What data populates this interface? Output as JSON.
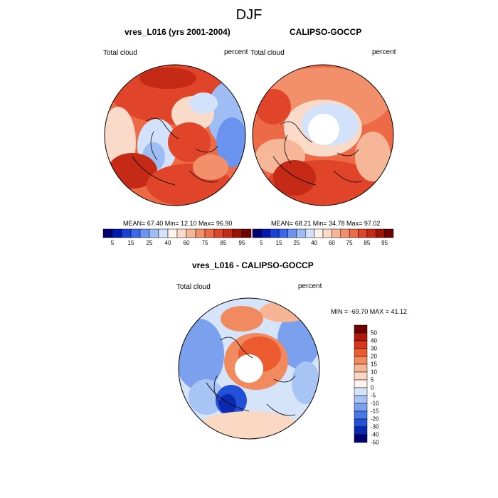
{
  "title": "DJF",
  "panels": [
    {
      "title": "vres_L016 (yrs 2001-2004)",
      "left_label": "Total cloud",
      "right_label": "percent",
      "stats": {
        "text": "MEAN=  67.40  Min=  12.10  Max=  96.90"
      }
    },
    {
      "title": "CALIPSO-GOCCP",
      "left_label": "Total cloud",
      "right_label": "percent",
      "stats": {
        "text": "MEAN=  68.21  Min=  34.78  Max=  97.02"
      }
    },
    {
      "title": "vres_L016 - CALIPSO-GOCCP",
      "left_label": "Total cloud",
      "right_label": "percent",
      "stats": {
        "text": "MIN = -69.70 MAX =  41.12"
      }
    }
  ],
  "colorbar_abs": {
    "colors": [
      "#00006e",
      "#001ab0",
      "#1a40d6",
      "#3a68ec",
      "#6a94f0",
      "#9ebdf4",
      "#d2e2fa",
      "#fdf3ec",
      "#fadac8",
      "#f6b698",
      "#f2906c",
      "#ec6a46",
      "#e0452a",
      "#c42a16",
      "#9a1408",
      "#6e0200"
    ],
    "ticks": [
      "5",
      "15",
      "25",
      "40",
      "60",
      "75",
      "85",
      "95"
    ]
  },
  "colorbar_diff": {
    "colors": [
      "#6e0200",
      "#b01a0a",
      "#d8361c",
      "#ec5a30",
      "#f28a60",
      "#f6b696",
      "#fad8c4",
      "#fdf3ec",
      "#d6e4fa",
      "#a8c4f4",
      "#7aa0ee",
      "#4a78e8",
      "#2250d6",
      "#0a28b0",
      "#00006e"
    ],
    "ticks": [
      "50",
      "40",
      "30",
      "20",
      "15",
      "10",
      "5",
      "0",
      "-5",
      "-10",
      "-15",
      "-20",
      "-30",
      "-40",
      "-50"
    ]
  },
  "chart_data": [
    {
      "type": "heatmap",
      "title": "vres_L016 (yrs 2001-2004)",
      "variable": "Total cloud",
      "units": "percent",
      "projection": "north polar stereographic",
      "mean": 67.4,
      "min": 12.1,
      "max": 96.9,
      "levels": [
        5,
        10,
        15,
        20,
        25,
        30,
        40,
        50,
        60,
        70,
        75,
        80,
        85,
        90,
        95
      ]
    },
    {
      "type": "heatmap",
      "title": "CALIPSO-GOCCP",
      "variable": "Total cloud",
      "units": "percent",
      "projection": "north polar stereographic",
      "mean": 68.21,
      "min": 34.78,
      "max": 97.02,
      "levels": [
        5,
        10,
        15,
        20,
        25,
        30,
        40,
        50,
        60,
        70,
        75,
        80,
        85,
        90,
        95
      ]
    },
    {
      "type": "heatmap",
      "title": "vres_L016 - CALIPSO-GOCCP",
      "variable": "Total cloud",
      "units": "percent",
      "projection": "north polar stereographic",
      "min": -69.7,
      "max": 41.12,
      "levels": [
        -50,
        -40,
        -30,
        -20,
        -15,
        -10,
        -5,
        0,
        5,
        10,
        15,
        20,
        30,
        40,
        50
      ]
    }
  ]
}
